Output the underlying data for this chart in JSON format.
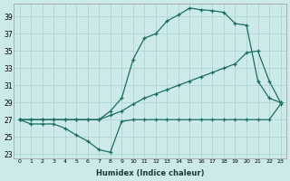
{
  "xlabel": "Humidex (Indice chaleur)",
  "background_color": "#cceaea",
  "grid_color": "#aacfcf",
  "line_color": "#1a6e60",
  "xlim": [
    -0.5,
    23.5
  ],
  "ylim": [
    22.5,
    40.5
  ],
  "yticks": [
    23,
    25,
    27,
    29,
    31,
    33,
    35,
    37,
    39
  ],
  "xticks": [
    0,
    1,
    2,
    3,
    4,
    5,
    6,
    7,
    8,
    9,
    10,
    11,
    12,
    13,
    14,
    15,
    16,
    17,
    18,
    19,
    20,
    21,
    22,
    23
  ],
  "line1_x": [
    0,
    1,
    2,
    3,
    4,
    5,
    6,
    7,
    8,
    9,
    10,
    11,
    12,
    13,
    14,
    15,
    16,
    17,
    18,
    19,
    20,
    21,
    22,
    23
  ],
  "line1_y": [
    27,
    26.5,
    26.5,
    26.5,
    26,
    25.2,
    24.5,
    23.5,
    23.2,
    26.8,
    27,
    27,
    27,
    27,
    27,
    27,
    27,
    27,
    27,
    27,
    27,
    27,
    27,
    28.8
  ],
  "line2_x": [
    0,
    1,
    2,
    3,
    4,
    5,
    6,
    7,
    8,
    9,
    10,
    11,
    12,
    13,
    14,
    15,
    16,
    17,
    18,
    19,
    20,
    21,
    22,
    23
  ],
  "line2_y": [
    27,
    27,
    27,
    27,
    27,
    27,
    27,
    27,
    28,
    29.5,
    34,
    36.5,
    37,
    38.5,
    39.2,
    40,
    39.8,
    39.7,
    39.5,
    38.2,
    38,
    31.5,
    29.5,
    29
  ],
  "line3_x": [
    0,
    1,
    2,
    3,
    4,
    5,
    6,
    7,
    8,
    9,
    10,
    11,
    12,
    13,
    14,
    15,
    16,
    17,
    18,
    19,
    20,
    21,
    22,
    23
  ],
  "line3_y": [
    27,
    27,
    27,
    27,
    27,
    27,
    27,
    27,
    27.5,
    28,
    28.8,
    29.5,
    30,
    30.5,
    31,
    31.5,
    32,
    32.5,
    33,
    33.5,
    34.8,
    35,
    31.5,
    29
  ]
}
